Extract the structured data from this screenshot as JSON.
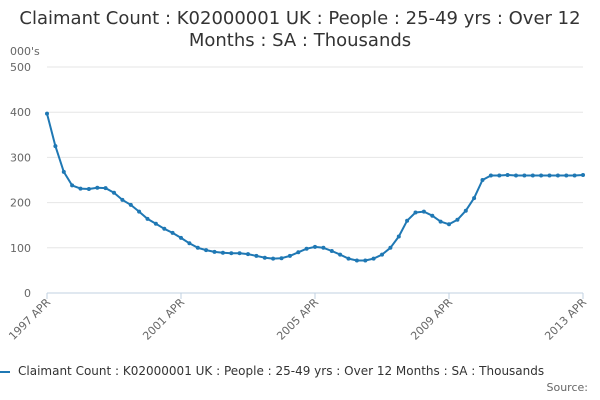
{
  "title": "Claimant Count : K02000001 UK : People : 25-49 yrs : Over 12 Months : SA : Thousands",
  "source_label": "Source:",
  "colors": {
    "series": "#1f78b4",
    "grid": "#e6e6e6",
    "axis": "#c0d0e0"
  },
  "chart_data": {
    "type": "line",
    "title": "Claimant Count : K02000001 UK : People : 25-49 yrs : Over 12 Months : SA : Thousands",
    "ylabel": "000's",
    "xlabel": "",
    "ylim": [
      0,
      500
    ],
    "yticks": [
      0,
      100,
      200,
      300,
      400,
      500
    ],
    "xticks": [
      "1997 APR",
      "2001 APR",
      "2005 APR",
      "2009 APR",
      "2013 APR"
    ],
    "x_range": [
      "1997-04",
      "2013-04"
    ],
    "grid": "horizontal",
    "legend": "bottom",
    "markers": true,
    "series": [
      {
        "name": "Claimant Count : K02000001 UK : People : 25-49 yrs : Over 12 Months : SA : Thousands",
        "x": [
          "1997-04",
          "1997-07",
          "1997-10",
          "1998-01",
          "1998-04",
          "1998-07",
          "1998-10",
          "1999-01",
          "1999-04",
          "1999-07",
          "1999-10",
          "2000-01",
          "2000-04",
          "2000-07",
          "2000-10",
          "2001-01",
          "2001-04",
          "2001-07",
          "2001-10",
          "2002-01",
          "2002-04",
          "2002-07",
          "2002-10",
          "2003-01",
          "2003-04",
          "2003-07",
          "2003-10",
          "2004-01",
          "2004-04",
          "2004-07",
          "2004-10",
          "2005-01",
          "2005-04",
          "2005-07",
          "2005-10",
          "2006-01",
          "2006-04",
          "2006-07",
          "2006-10",
          "2007-01",
          "2007-04",
          "2007-07",
          "2007-10",
          "2008-01",
          "2008-04",
          "2008-07",
          "2008-10",
          "2009-01",
          "2009-04",
          "2009-07",
          "2009-10",
          "2010-01",
          "2010-04",
          "2010-07",
          "2010-10",
          "2011-01",
          "2011-04",
          "2011-07",
          "2011-10",
          "2012-01",
          "2012-04",
          "2012-07",
          "2012-10",
          "2013-01",
          "2013-04"
        ],
        "values": [
          397,
          325,
          268,
          238,
          231,
          230,
          233,
          232,
          222,
          206,
          195,
          180,
          164,
          153,
          142,
          133,
          122,
          110,
          100,
          95,
          91,
          89,
          88,
          88,
          86,
          82,
          78,
          76,
          77,
          82,
          90,
          98,
          102,
          100,
          93,
          85,
          76,
          72,
          72,
          76,
          85,
          100,
          125,
          160,
          178,
          180,
          171,
          158,
          152,
          162,
          182,
          210,
          250,
          260,
          260,
          261,
          260,
          260,
          260,
          260,
          260,
          260,
          260,
          260,
          261
        ]
      }
    ]
  }
}
